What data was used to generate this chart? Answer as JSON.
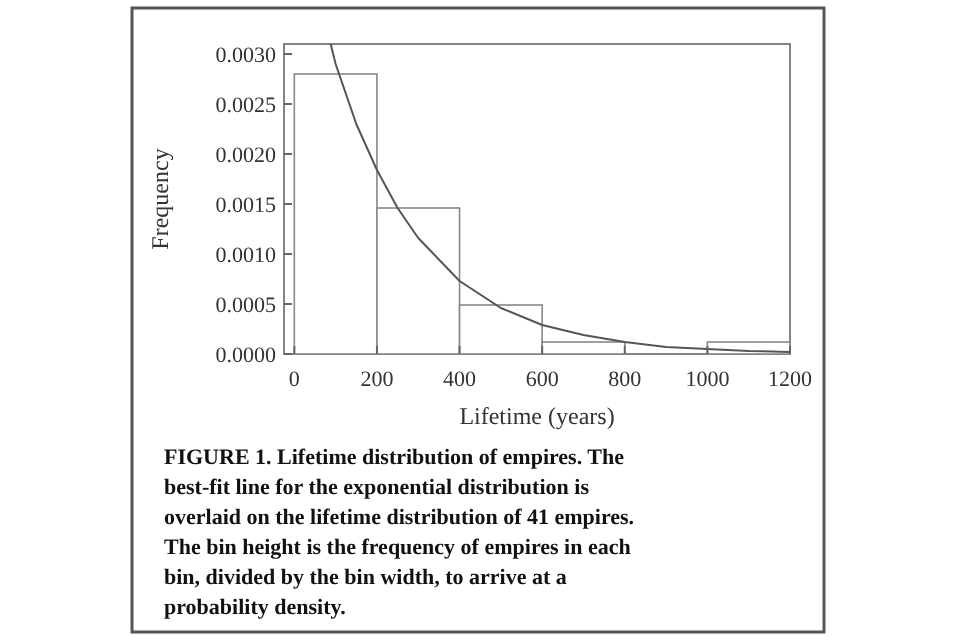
{
  "chart_data": {
    "type": "histogram",
    "xlabel": "Lifetime (years)",
    "ylabel": "Frequency",
    "bins": [
      0,
      200,
      400,
      600,
      800,
      1000,
      1200
    ],
    "values": [
      0.0028,
      0.00146,
      0.00049,
      0.00012,
      0,
      0.00012
    ],
    "color": "#ffffff",
    "series": [
      {
        "type": "line",
        "color": "#555555",
        "x": [
          88,
          100,
          150,
          200,
          250,
          300,
          400,
          500,
          600,
          700,
          800,
          900,
          1000,
          1100,
          1200
        ],
        "values": [
          0.0031,
          0.0029,
          0.0023,
          0.00184,
          0.00146,
          0.00116,
          0.00073,
          0.00046,
          0.00029,
          0.00019,
          0.00012,
          7e-05,
          5e-05,
          3e-05,
          2e-05
        ]
      }
    ],
    "xlim": [
      -25,
      1200
    ],
    "xticks": [
      0,
      200,
      400,
      600,
      800,
      1000,
      1200
    ],
    "ylim": [
      0,
      0.0031
    ],
    "yticks": [
      {
        "value": 0,
        "label": "0.0000"
      },
      {
        "value": 0.0005,
        "label": "0.0005"
      },
      {
        "value": 0.001,
        "label": "0.0010"
      },
      {
        "value": 0.0015,
        "label": "0.0015"
      },
      {
        "value": 0.002,
        "label": "0.0020"
      },
      {
        "value": 0.0025,
        "label": "0.0025"
      },
      {
        "value": 0.003,
        "label": "0.0030"
      }
    ],
    "annotations": [
      "FIGURE 1. Lifetime distribution of empires. The best-fit line for the exponential distribution is overlaid on the lifetime distribution of 41 empires. The bin height is the frequency of empires in each bin, divided by the bin width, to arrive at a probability density."
    ]
  }
}
